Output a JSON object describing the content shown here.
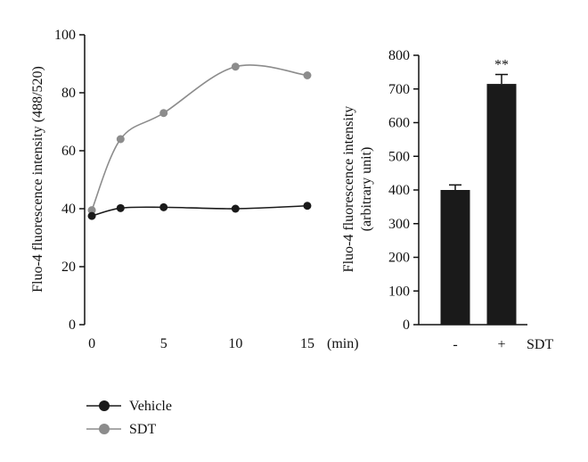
{
  "chart_data": [
    {
      "type": "line",
      "ylabel": "Fluo-4 fluorescence intensity (488/520)",
      "x_unit": "(min)",
      "xticks": [
        0,
        5,
        10,
        15
      ],
      "yticks": [
        0,
        20,
        40,
        60,
        80,
        100
      ],
      "xlim": [
        -0.5,
        15.5
      ],
      "ylim": [
        0,
        100
      ],
      "series": [
        {
          "name": "Vehicle",
          "color": "#1a1a1a",
          "x": [
            0,
            2,
            5,
            10,
            15
          ],
          "y": [
            37.5,
            40.2,
            40.5,
            40.0,
            41.0
          ]
        },
        {
          "name": "SDT",
          "color": "#8c8c8c",
          "x": [
            0,
            2,
            5,
            10,
            15
          ],
          "y": [
            39.5,
            64.0,
            73.0,
            89.0,
            86.0
          ]
        }
      ],
      "legend": {
        "placement": "bottom-left"
      },
      "grid": false
    },
    {
      "type": "bar",
      "ylabel_line1": "Fluo-4 fluorescence intensity",
      "ylabel_line2": "(arbitrary unit)",
      "categories": [
        "-",
        "+"
      ],
      "category_axis_label": "SDT",
      "values": [
        400,
        715
      ],
      "errors": [
        15,
        28
      ],
      "significance": [
        "",
        "**"
      ],
      "bar_color": "#1a1a1a",
      "yticks": [
        0,
        100,
        200,
        300,
        400,
        500,
        600,
        700,
        800
      ],
      "ylim": [
        0,
        800
      ],
      "grid": false
    }
  ]
}
